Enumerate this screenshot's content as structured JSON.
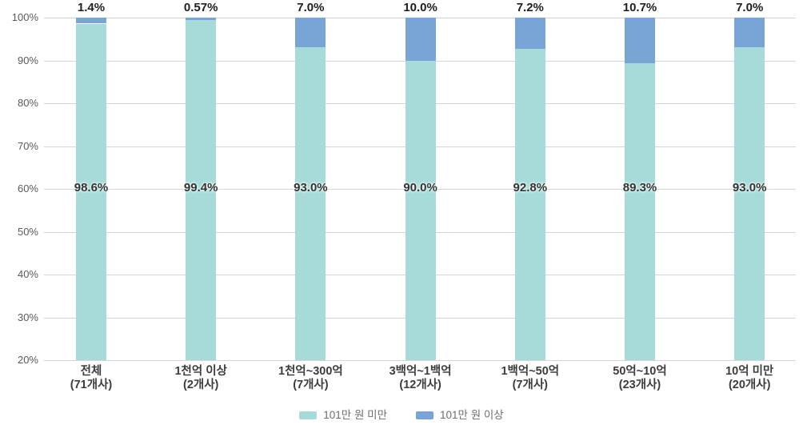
{
  "chart_data": {
    "type": "bar",
    "stacked": true,
    "percent_axis": true,
    "title": "",
    "xlabel": "",
    "ylabel": "",
    "categories": [
      "전체",
      "1천억 이상",
      "1천억~300억",
      "3백억~1백억",
      "1백억~50억",
      "50억~10억",
      "10억 미만"
    ],
    "category_sublabels": [
      "(71개사)",
      "(2개사)",
      "(7개사)",
      "(12개사)",
      "(7개사)",
      "(23개사)",
      "(20개사)"
    ],
    "series": [
      {
        "name": "101만 원 미만",
        "color": "#a6dbd9",
        "values": [
          98.6,
          99.4,
          93.0,
          90.0,
          92.8,
          89.3,
          93.0
        ],
        "labels": [
          "98.6%",
          "99.4%",
          "93.0%",
          "90.0%",
          "92.8%",
          "89.3%",
          "93.0%"
        ]
      },
      {
        "name": "101만 원 이상",
        "color": "#78a4d6",
        "values": [
          1.4,
          0.57,
          7.0,
          10.0,
          7.2,
          10.7,
          7.0
        ],
        "labels": [
          "1.4%",
          "0.57%",
          "7.0%",
          "10.0%",
          "7.2%",
          "10.7%",
          "7.0%"
        ]
      }
    ],
    "y_axis": {
      "min": 20,
      "max": 100,
      "step": 10,
      "tick_labels": [
        "100%",
        "90%",
        "80%",
        "70%",
        "60%",
        "50%",
        "40%",
        "30%",
        "20%"
      ]
    },
    "grid": true,
    "gridline_color": "#d5d5d5",
    "legend_position": "bottom",
    "inside_label_anchor_percent": 60
  }
}
